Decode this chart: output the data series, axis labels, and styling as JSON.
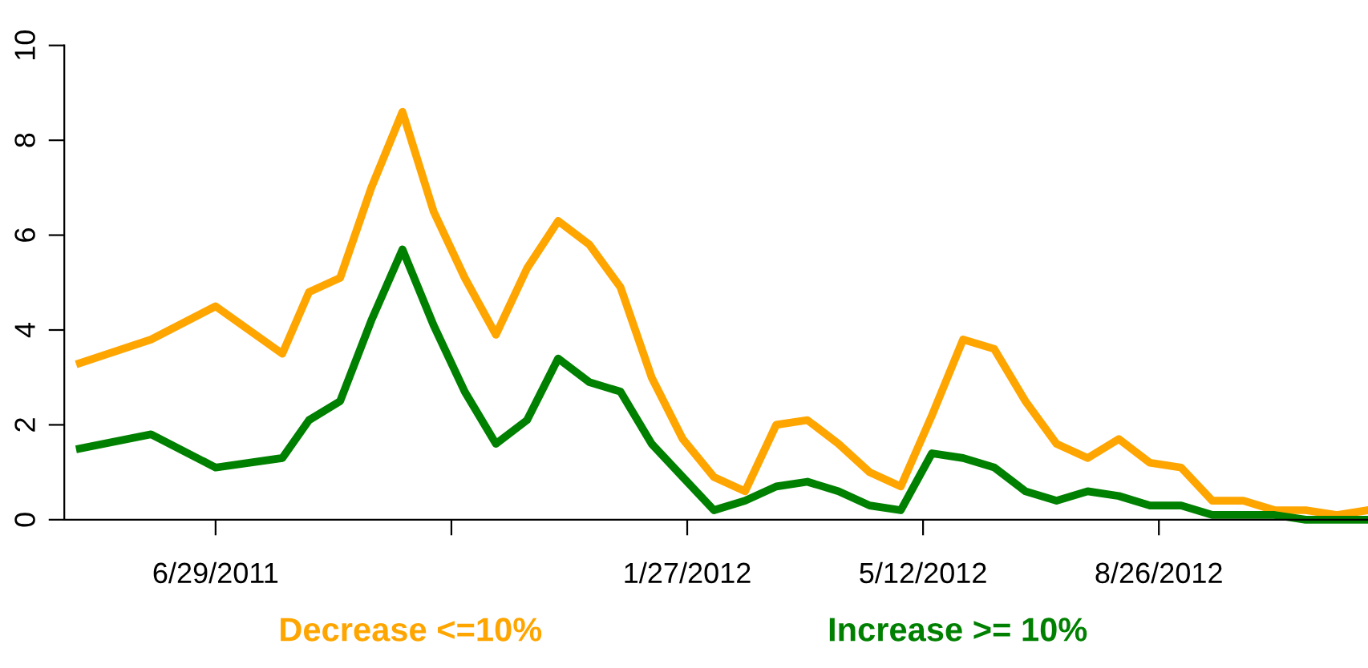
{
  "chart_data": {
    "type": "line",
    "x": [
      "2011-04-29",
      "2011-05-31",
      "2011-06-29",
      "2011-07-29",
      "2011-08-10",
      "2011-08-24",
      "2011-09-07",
      "2011-09-21",
      "2011-10-05",
      "2011-10-19",
      "2011-11-02",
      "2011-11-16",
      "2011-11-30",
      "2011-12-14",
      "2011-12-28",
      "2012-01-11",
      "2012-01-25",
      "2012-02-08",
      "2012-02-22",
      "2012-03-07",
      "2012-03-21",
      "2012-04-04",
      "2012-04-18",
      "2012-05-02",
      "2012-05-16",
      "2012-05-30",
      "2012-06-13",
      "2012-06-27",
      "2012-07-11",
      "2012-07-25",
      "2012-08-08",
      "2012-08-22",
      "2012-09-05",
      "2012-09-19",
      "2012-10-03",
      "2012-10-17",
      "2012-10-31",
      "2012-11-14",
      "2012-11-28"
    ],
    "series": [
      {
        "name": "Decrease <=10%",
        "color": "#ffa500",
        "values": [
          3.3,
          3.8,
          4.5,
          3.5,
          4.8,
          5.1,
          7.0,
          8.6,
          6.5,
          5.1,
          3.9,
          5.3,
          6.3,
          5.8,
          4.9,
          3.0,
          1.7,
          0.9,
          0.6,
          2.0,
          2.1,
          1.6,
          1.0,
          0.7,
          2.2,
          3.8,
          3.6,
          2.5,
          1.6,
          1.3,
          1.7,
          1.2,
          1.1,
          0.4,
          0.4,
          0.2,
          0.2,
          0.1,
          0.2
        ]
      },
      {
        "name": "Increase >= 10%",
        "color": "#008000",
        "values": [
          1.5,
          1.8,
          1.1,
          1.3,
          2.1,
          2.5,
          4.2,
          5.7,
          4.1,
          2.7,
          1.6,
          2.1,
          3.4,
          2.9,
          2.7,
          1.6,
          0.9,
          0.2,
          0.4,
          0.7,
          0.8,
          0.6,
          0.3,
          0.2,
          1.4,
          1.3,
          1.1,
          0.6,
          0.4,
          0.6,
          0.5,
          0.3,
          0.3,
          0.1,
          0.1,
          0.1,
          0.0,
          0.0,
          0.0
        ]
      }
    ],
    "xlim": [
      "2011-04-22",
      "2012-11-28"
    ],
    "xticks": [
      {
        "value": "2011-06-29",
        "label": "6/29/2011"
      },
      {
        "value": "2011-10-13",
        "label": null
      },
      {
        "value": "2012-01-27",
        "label": "1/27/2012"
      },
      {
        "value": "2012-05-12",
        "label": "5/12/2012"
      },
      {
        "value": "2012-08-26",
        "label": "8/26/2012"
      }
    ],
    "ylim": [
      0,
      10
    ],
    "yticks": [
      0,
      2,
      4,
      6,
      8,
      10
    ],
    "grid": false,
    "legend": "bottom",
    "marker": "none",
    "line_style": "solid"
  }
}
